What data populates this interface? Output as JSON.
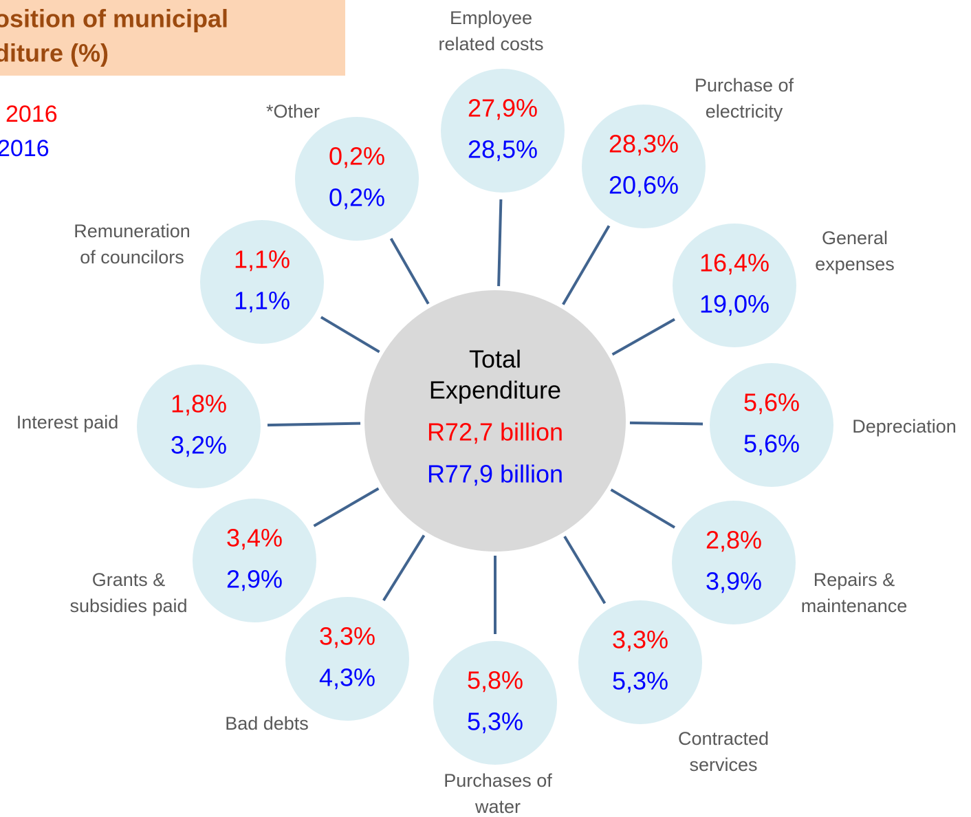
{
  "title": [
    "osition of municipal",
    "diture (%)"
  ],
  "legend": [
    "2016",
    "2016"
  ],
  "center": {
    "label": [
      "Total",
      "Expenditure"
    ],
    "values": [
      "R72,7 billion",
      "R77,9 billion"
    ]
  },
  "nodes": [
    {
      "label": [
        "Employee",
        "related costs"
      ],
      "values": [
        "27,9%",
        "28,5%"
      ]
    },
    {
      "label": [
        "Purchase of",
        "electricity"
      ],
      "values": [
        "28,3%",
        "20,6%"
      ]
    },
    {
      "label": [
        "General",
        "expenses"
      ],
      "values": [
        "16,4%",
        "19,0%"
      ]
    },
    {
      "label": [
        "Depreciation"
      ],
      "values": [
        "5,6%",
        "5,6%"
      ]
    },
    {
      "label": [
        "Repairs &",
        "maintenance"
      ],
      "values": [
        "2,8%",
        "3,9%"
      ]
    },
    {
      "label": [
        "Contracted",
        "services"
      ],
      "values": [
        "3,3%",
        "5,3%"
      ]
    },
    {
      "label": [
        "Purchases of",
        "water"
      ],
      "values": [
        "5,8%",
        "5,3%"
      ]
    },
    {
      "label": [
        "Bad debts"
      ],
      "values": [
        "3,3%",
        "4,3%"
      ]
    },
    {
      "label": [
        "Grants &",
        "subsidies paid"
      ],
      "values": [
        "3,4%",
        "2,9%"
      ]
    },
    {
      "label": [
        "Interest paid"
      ],
      "values": [
        "1,8%",
        "3,2%"
      ]
    },
    {
      "label": [
        "Remuneration",
        "of councilors"
      ],
      "values": [
        "1,1%",
        "1,1%"
      ]
    },
    {
      "label": [
        "*Other"
      ],
      "values": [
        "0,2%",
        "0,2%"
      ]
    }
  ]
}
